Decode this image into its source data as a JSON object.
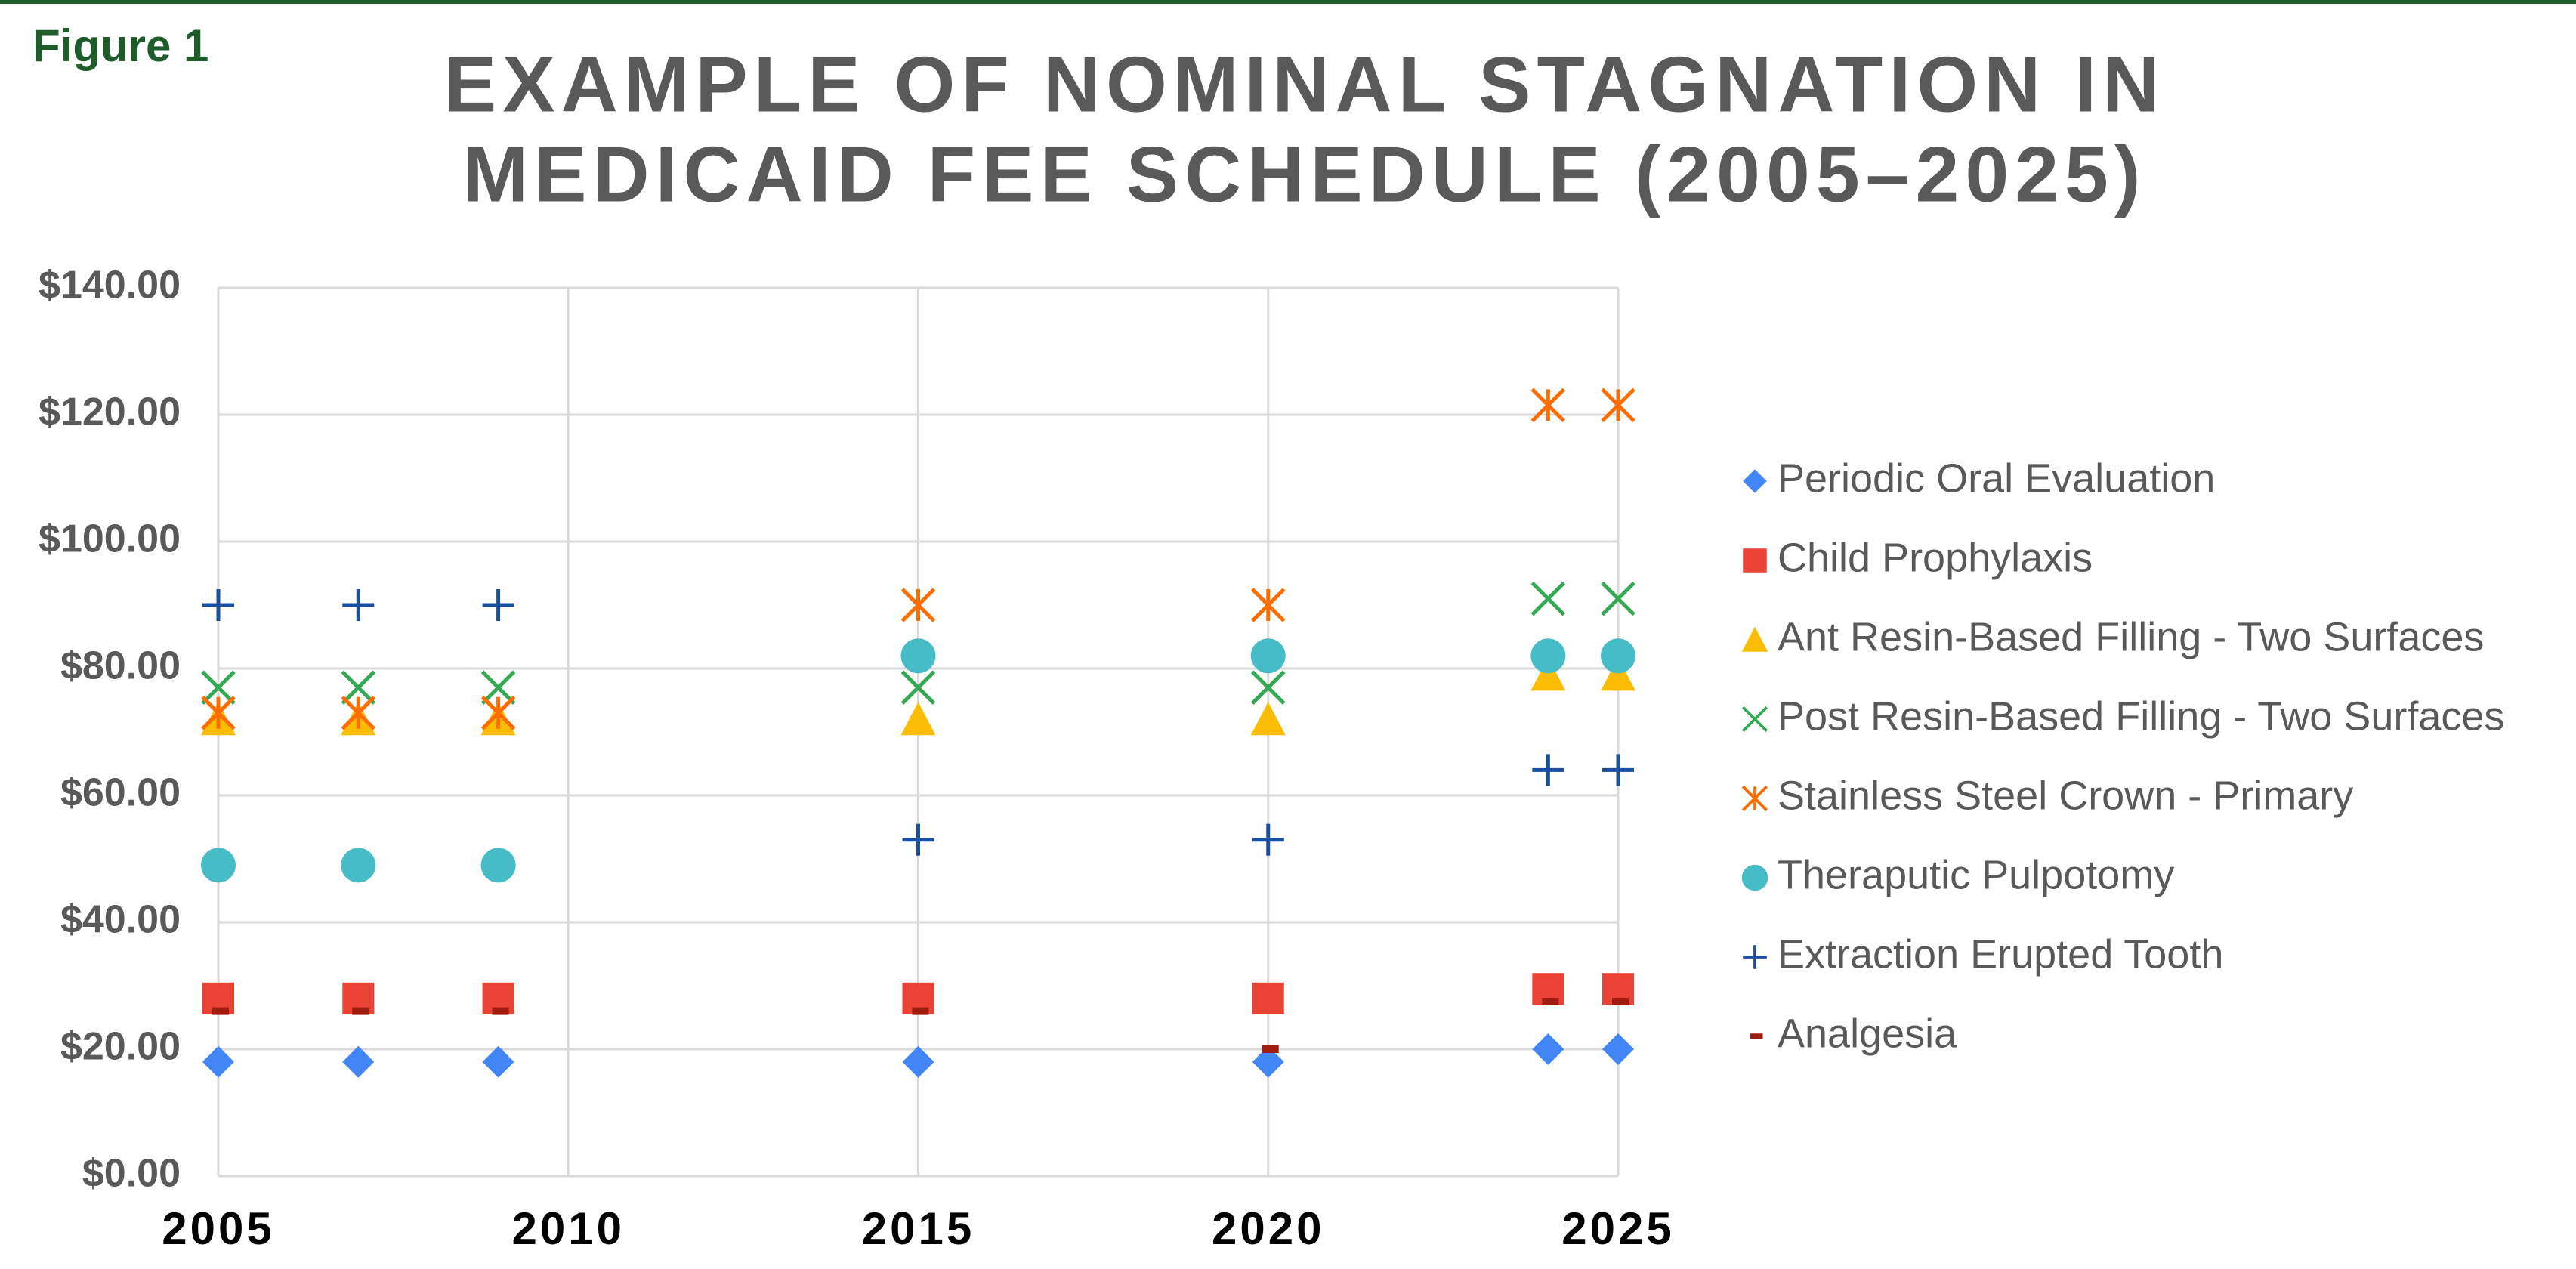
{
  "figure_label": "Figure 1",
  "chart_data": {
    "type": "scatter",
    "title": [
      "EXAMPLE OF NOMINAL STAGNATION IN",
      "MEDICAID FEE SCHEDULE (2005–2025)"
    ],
    "x": [
      2005,
      2007,
      2009,
      2015,
      2020,
      2024,
      2025
    ],
    "xlim": [
      2005,
      2025
    ],
    "xticks": [
      2005,
      2010,
      2015,
      2020,
      2025
    ],
    "ylim": [
      0,
      140
    ],
    "yticks": [
      {
        "value": 0,
        "label": "$0.00"
      },
      {
        "value": 20,
        "label": "$20.00"
      },
      {
        "value": 40,
        "label": "$40.00"
      },
      {
        "value": 60,
        "label": "$60.00"
      },
      {
        "value": 80,
        "label": "$80.00"
      },
      {
        "value": 100,
        "label": "$100.00"
      },
      {
        "value": 120,
        "label": "$120.00"
      },
      {
        "value": 140,
        "label": "$140.00"
      }
    ],
    "grid": true,
    "legend": "right",
    "series": [
      {
        "name": "Periodic Oral Evaluation",
        "color": "#4285f4",
        "marker": "diamond",
        "values": [
          18,
          18,
          18,
          18,
          18,
          20,
          20
        ]
      },
      {
        "name": "Child Prophylaxis",
        "color": "#ea4335",
        "marker": "square",
        "values": [
          28,
          28,
          28,
          28,
          28,
          29.5,
          29.5
        ]
      },
      {
        "name": "Ant Resin-Based Filling - Two Surfaces",
        "color": "#fbbc04",
        "marker": "triangle",
        "values": [
          72,
          72,
          72,
          72,
          72,
          79,
          79
        ]
      },
      {
        "name": "Post Resin-Based Filling - Two Surfaces",
        "color": "#34a853",
        "marker": "x",
        "values": [
          77,
          77,
          77,
          77,
          77,
          91,
          91
        ]
      },
      {
        "name": "Stainless Steel Crown - Primary",
        "color": "#ff6d01",
        "marker": "asterisk",
        "values": [
          73,
          73,
          73,
          90,
          90,
          121.5,
          121.5
        ]
      },
      {
        "name": "Theraputic Pulpotomy",
        "color": "#46bdc6",
        "marker": "circle",
        "values": [
          49,
          49,
          49,
          82,
          82,
          82,
          82
        ]
      },
      {
        "name": "Extraction Erupted Tooth",
        "color": "#1a4fa0",
        "marker": "plus",
        "values": [
          90,
          90,
          90,
          53,
          53,
          64,
          64
        ]
      },
      {
        "name": "Analgesia",
        "color": "#a01c10",
        "marker": "dash",
        "values": [
          26,
          26,
          26,
          26,
          20,
          27.5,
          27.5
        ]
      }
    ]
  }
}
